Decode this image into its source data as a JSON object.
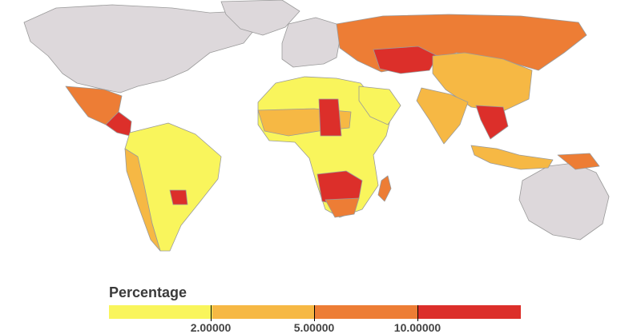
{
  "legend": {
    "title": "Percentage",
    "colors": [
      "#f9f55c",
      "#f6b844",
      "#ed7d35",
      "#dc2f2a"
    ],
    "ticks": [
      "2.00000",
      "5.00000",
      "10.00000"
    ]
  },
  "map": {
    "ocean_color": "#ffffff",
    "no_data_color": "#ddd8db",
    "border_color": "#9a9a9a",
    "regions": [
      {
        "name": "North America",
        "bin": "no_data"
      },
      {
        "name": "Greenland",
        "bin": "no_data"
      },
      {
        "name": "Europe",
        "bin": "no_data"
      },
      {
        "name": "Australia",
        "bin": "no_data"
      },
      {
        "name": "Mexico",
        "bin": 2
      },
      {
        "name": "Central America",
        "bin": 3
      },
      {
        "name": "South America",
        "bin": 0
      },
      {
        "name": "Peru / Chile",
        "bin": 1
      },
      {
        "name": "Paraguay",
        "bin": 3
      },
      {
        "name": "Africa",
        "bin": 0
      },
      {
        "name": "Sahel",
        "bin": 1
      },
      {
        "name": "Chad",
        "bin": 3
      },
      {
        "name": "Southern Africa",
        "bin": 3
      },
      {
        "name": "South Africa",
        "bin": 2
      },
      {
        "name": "Madagascar",
        "bin": 2
      },
      {
        "name": "Russia",
        "bin": 2
      },
      {
        "name": "Kazakhstan",
        "bin": 3
      },
      {
        "name": "China",
        "bin": 1
      },
      {
        "name": "India",
        "bin": 1
      },
      {
        "name": "Arabia",
        "bin": 0
      },
      {
        "name": "Southeast Asia",
        "bin": 3
      },
      {
        "name": "Indonesia",
        "bin": 1
      },
      {
        "name": "New Guinea",
        "bin": 2
      }
    ]
  }
}
